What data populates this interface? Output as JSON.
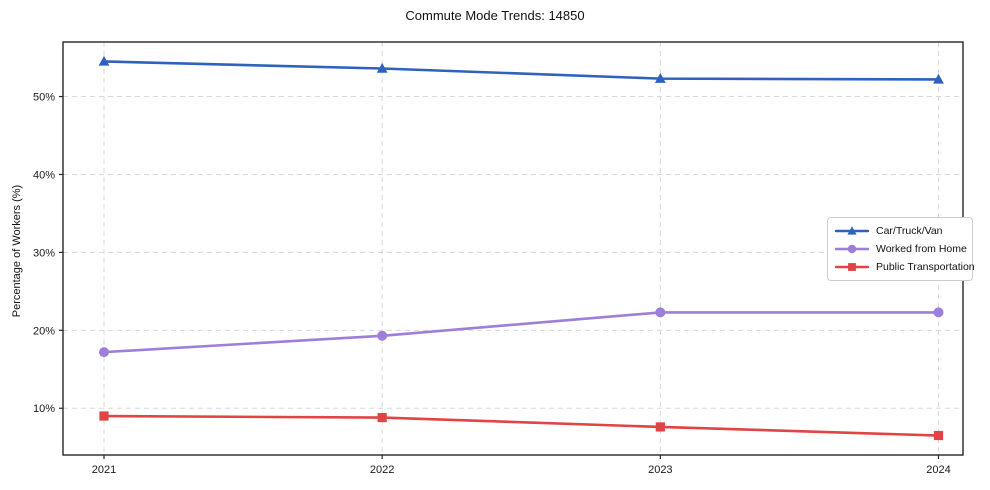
{
  "title": "Commute Mode Trends: 14850",
  "chart_data": {
    "type": "line",
    "title": "Commute Mode Trends: 14850",
    "xlabel": "",
    "ylabel": "Percentage of Workers (%)",
    "x": [
      2021,
      2022,
      2023,
      2024
    ],
    "xtick_labels": [
      "2021",
      "2022",
      "2023",
      "2024"
    ],
    "yticks": [
      10,
      20,
      30,
      40,
      50
    ],
    "ytick_labels": [
      "10%",
      "20%",
      "30%",
      "40%",
      "50%"
    ],
    "ylim": [
      4.0,
      57.0
    ],
    "grid": true,
    "grid_style": "dashed",
    "grid_color": "#d8d8d8",
    "axis_color": "#262626",
    "background_color": "#ffffff",
    "legend_position": "center-right",
    "series": [
      {
        "name": "Car/Truck/Van",
        "color": "#2e62bc",
        "marker": "triangle",
        "values": [
          54.5,
          53.6,
          52.3,
          52.2
        ]
      },
      {
        "name": "Worked from Home",
        "color": "#9d7edb",
        "marker": "circle",
        "values": [
          17.2,
          19.3,
          22.3,
          22.3
        ]
      },
      {
        "name": "Public Transportation",
        "color": "#e04444",
        "marker": "square",
        "values": [
          9.0,
          8.8,
          7.6,
          6.5
        ]
      }
    ]
  }
}
